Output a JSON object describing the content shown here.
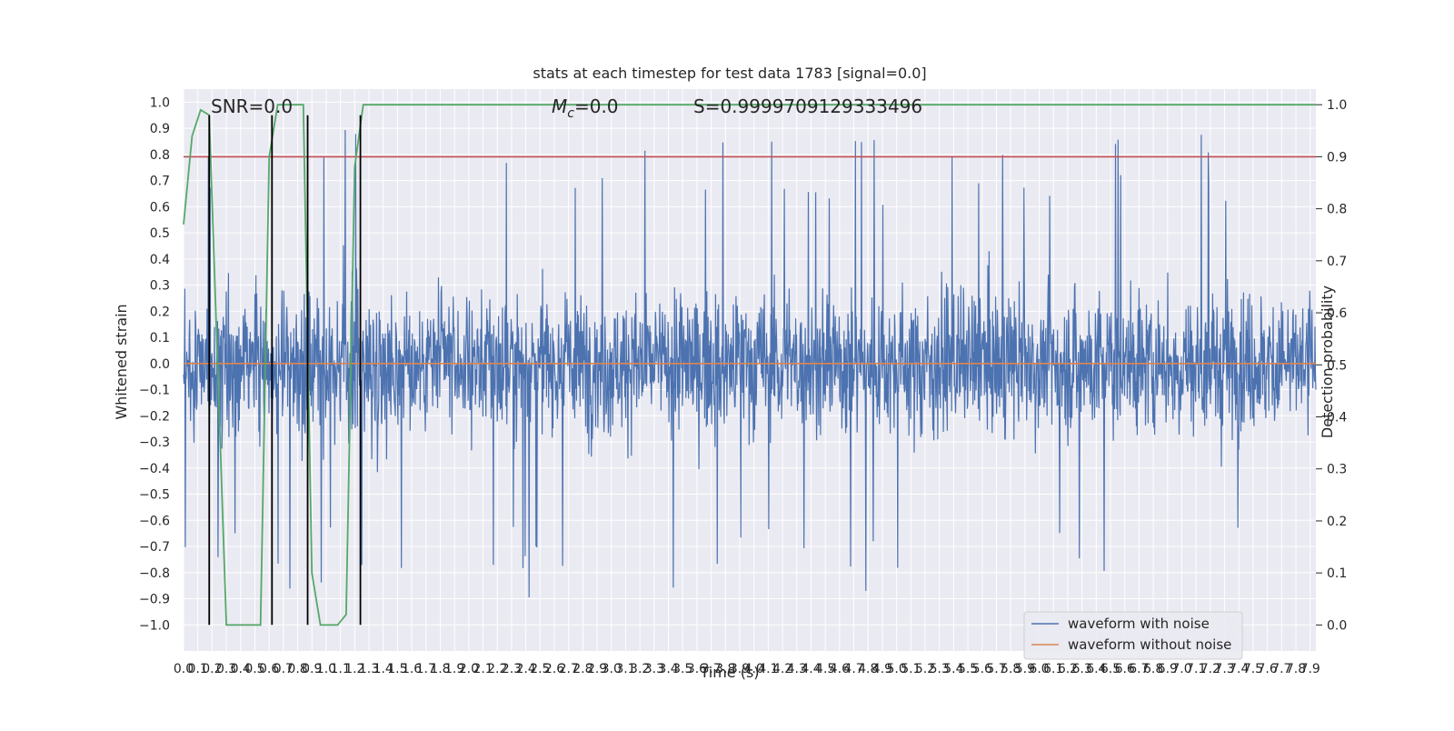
{
  "chart_data": {
    "type": "line",
    "title": "stats at each timestep for test data 1783 [signal=0.0]",
    "xlabel": "Time (s)",
    "ylabel": "Whitened strain",
    "y2label": "Detection probability",
    "xlim": [
      0,
      7.94
    ],
    "ylim": [
      -1.1,
      1.05
    ],
    "y2lim": [
      -0.05,
      1.03
    ],
    "xticks": [
      0.0,
      0.1,
      0.2,
      0.3,
      0.4,
      0.5,
      0.6,
      0.7,
      0.8,
      0.9,
      1.0,
      1.1,
      1.2,
      1.3,
      1.4,
      1.5,
      1.6,
      1.7,
      1.8,
      1.9,
      2.0,
      2.1,
      2.2,
      2.3,
      2.4,
      2.5,
      2.6,
      2.7,
      2.8,
      2.9,
      3.0,
      3.1,
      3.2,
      3.3,
      3.4,
      3.5,
      3.6,
      3.7,
      3.8,
      3.9,
      4.0,
      4.1,
      4.2,
      4.3,
      4.4,
      4.5,
      4.6,
      4.7,
      4.8,
      4.9,
      5.0,
      5.1,
      5.2,
      5.3,
      5.4,
      5.5,
      5.6,
      5.7,
      5.8,
      5.9,
      6.0,
      6.1,
      6.2,
      6.3,
      6.4,
      6.5,
      6.6,
      6.7,
      6.8,
      6.9,
      7.0,
      7.1,
      7.2,
      7.3,
      7.4,
      7.5,
      7.6,
      7.7,
      7.8,
      7.9
    ],
    "yticks": [
      -1.0,
      -0.9,
      -0.8,
      -0.7,
      -0.6,
      -0.5,
      -0.4,
      -0.3,
      -0.2,
      -0.1,
      0.0,
      0.1,
      0.2,
      0.3,
      0.4,
      0.5,
      0.6,
      0.7,
      0.8,
      0.9,
      1.0
    ],
    "y2ticks": [
      0.0,
      0.1,
      0.2,
      0.3,
      0.4,
      0.5,
      0.6,
      0.7,
      0.8,
      0.9,
      1.0
    ],
    "annotations": {
      "snr": "SNR=0.0",
      "mc_symbol": "M",
      "mc_sub": "c",
      "mc_value": "=0.0",
      "s": "S=0.9999709129333496"
    },
    "series": [
      {
        "name": "waveform with noise",
        "color": "#4c72b0",
        "kind": "noise",
        "amplitude_typical": 0.45,
        "amplitude_peak": 1.0
      },
      {
        "name": "waveform without noise",
        "color": "#dd8452",
        "y": 0.0
      },
      {
        "color": "#55a868",
        "axis": "right",
        "x": [
          0.0,
          0.06,
          0.12,
          0.18,
          0.3,
          0.42,
          0.54,
          0.6,
          0.66,
          0.72,
          0.78,
          0.84,
          0.9,
          0.96,
          1.02,
          1.08,
          1.14,
          1.2,
          1.26,
          1.32,
          1.38,
          1.44,
          7.94
        ],
        "y": [
          0.77,
          0.94,
          0.99,
          0.98,
          0.0,
          0.0,
          0.0,
          0.9,
          1.0,
          1.0,
          1.0,
          1.0,
          0.1,
          0.0,
          0.0,
          0.0,
          0.02,
          0.88,
          1.0,
          1.0,
          1.0,
          1.0,
          1.0
        ]
      },
      {
        "color": "#c44e52",
        "axis": "right",
        "y": 0.9
      }
    ],
    "vlines": [
      0.18,
      0.62,
      0.87,
      1.24
    ],
    "vline_color": "#000000",
    "legend": {
      "position": "lower-right",
      "entries": [
        "waveform with noise",
        "waveform without noise"
      ]
    },
    "grid": true,
    "background": "#eaeaf2"
  }
}
